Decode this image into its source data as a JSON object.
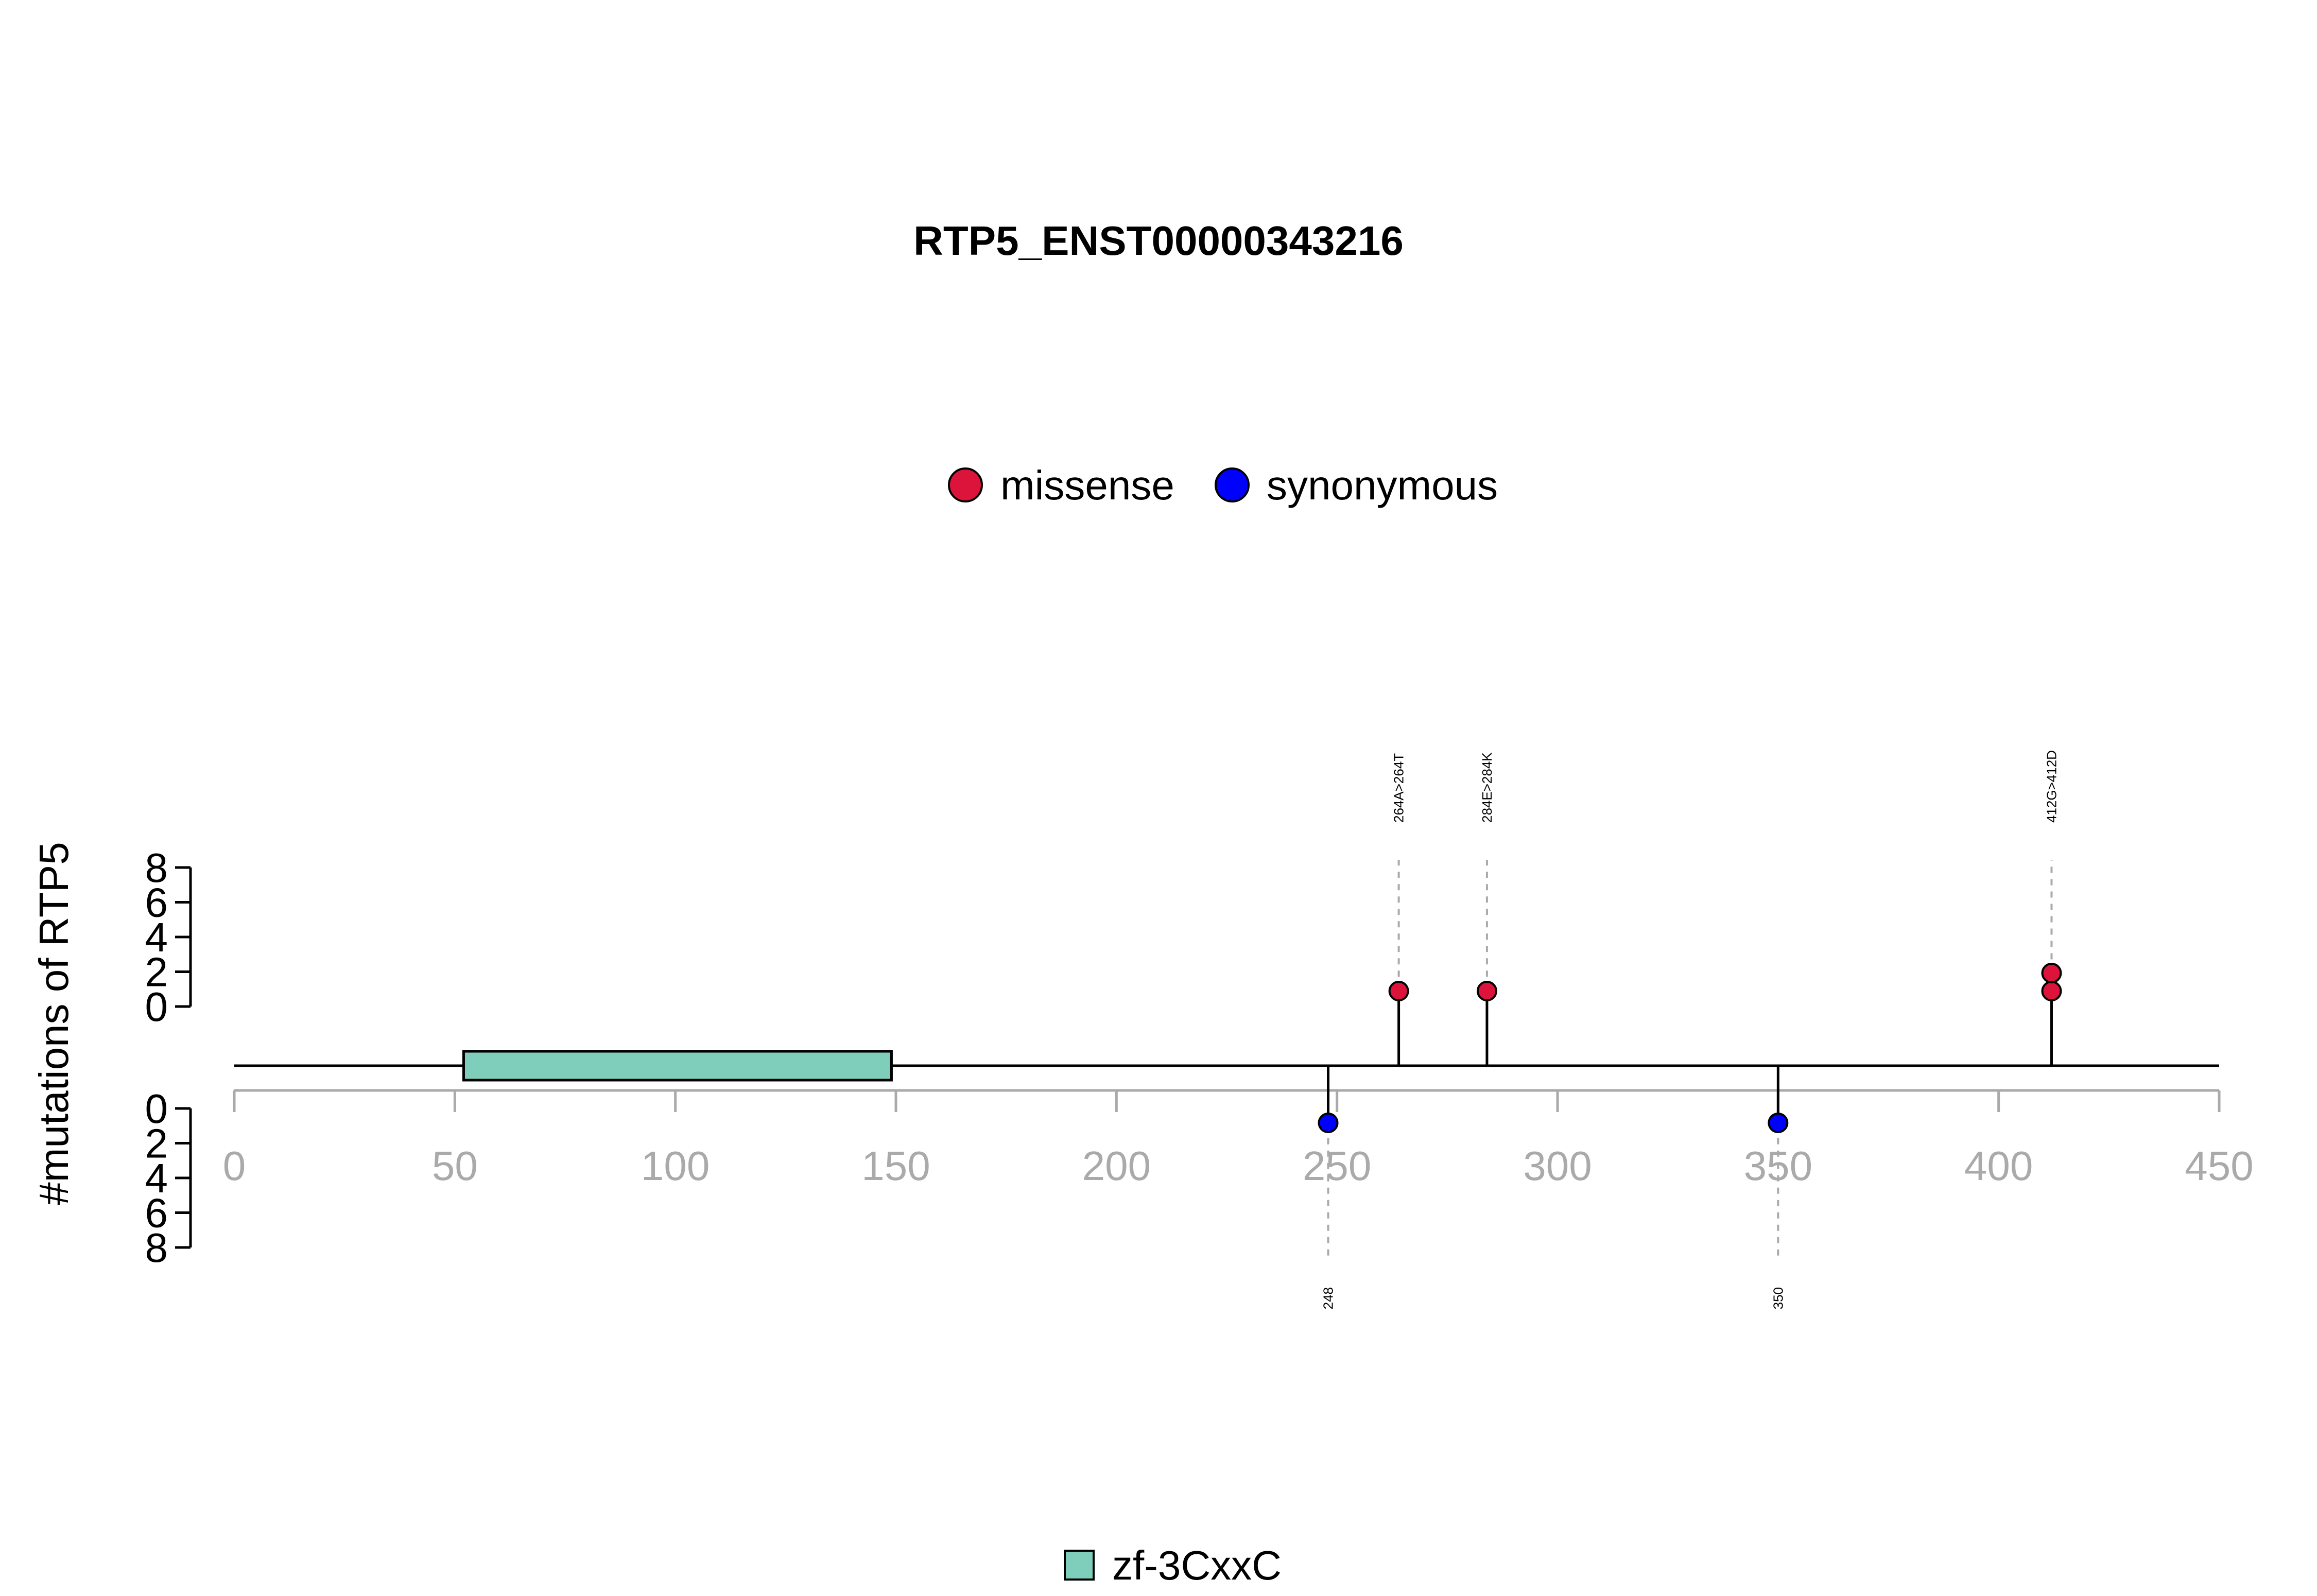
{
  "chart_data": {
    "type": "lollipop",
    "title": "RTP5_ENST00000343216",
    "ylabel": "#mutations of RTP5",
    "xlim": [
      0,
      450
    ],
    "x_ticks": [
      "0",
      "50",
      "100",
      "150",
      "200",
      "250",
      "300",
      "350",
      "400",
      "450"
    ],
    "upper_y_ticks": [
      "0",
      "2",
      "4",
      "6",
      "8"
    ],
    "lower_y_ticks": [
      "0",
      "2",
      "4",
      "6",
      "8"
    ],
    "ylim": [
      0,
      8
    ],
    "legend_top": [
      {
        "label": "missense",
        "color": "#dc143c"
      },
      {
        "label": "synonymous",
        "color": "#0000ff"
      }
    ],
    "legend_bottom": [
      {
        "label": "zf-3CxxC",
        "color": "#7fcdbb"
      }
    ],
    "domains": [
      {
        "name": "zf-3CxxC",
        "start": 52,
        "end": 149,
        "color": "#7fcdbb"
      }
    ],
    "protein_length": 450,
    "mutations": [
      {
        "position": 264,
        "label": "264A>264T",
        "type": "missense",
        "count": 1,
        "side": "top"
      },
      {
        "position": 284,
        "label": "284E>284K",
        "type": "missense",
        "count": 1,
        "side": "top"
      },
      {
        "position": 412,
        "label": "412G>412D",
        "type": "missense",
        "count": 2,
        "side": "top"
      },
      {
        "position": 248,
        "label": "248",
        "type": "synonymous",
        "count": 1,
        "side": "bottom"
      },
      {
        "position": 350,
        "label": "350",
        "type": "synonymous",
        "count": 1,
        "side": "bottom"
      }
    ]
  }
}
